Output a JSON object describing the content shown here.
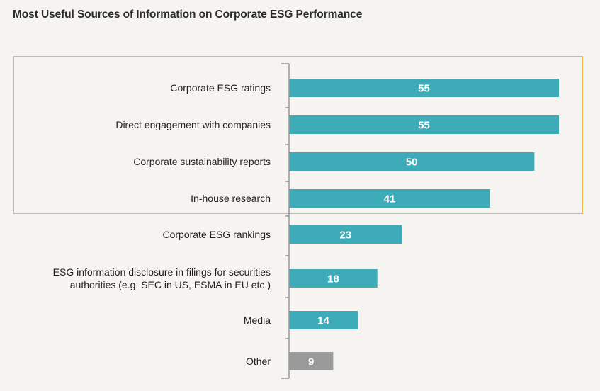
{
  "chart_data": {
    "type": "bar",
    "orientation": "horizontal",
    "title": "Most Useful Sources of Information on Corporate ESG Performance",
    "xlabel": "",
    "ylabel": "",
    "xlim": [
      0,
      55
    ],
    "grid": false,
    "categories": [
      [
        "Corporate ESG ratings"
      ],
      [
        "Direct engagement with companies"
      ],
      [
        "Corporate sustainability reports"
      ],
      [
        "In-house research"
      ],
      [
        "Corporate ESG rankings"
      ],
      [
        "ESG information disclosure in filings for securities",
        "authorities (e.g. SEC in US, ESMA in EU etc.)"
      ],
      [
        "Media"
      ],
      [
        "Other"
      ]
    ],
    "values": [
      55,
      55,
      50,
      41,
      23,
      18,
      14,
      9
    ],
    "bar_colors": [
      "#3dacb8",
      "#3dacb8",
      "#3dacb8",
      "#3dacb8",
      "#3dacb8",
      "#3dacb8",
      "#3dacb8",
      "#9a9a9a"
    ],
    "highlighted_categories": [
      "Corporate ESG ratings",
      "Direct engagement with companies",
      "Corporate sustainability reports",
      "In-house research"
    ],
    "highlight_color": "#f0b83c"
  }
}
